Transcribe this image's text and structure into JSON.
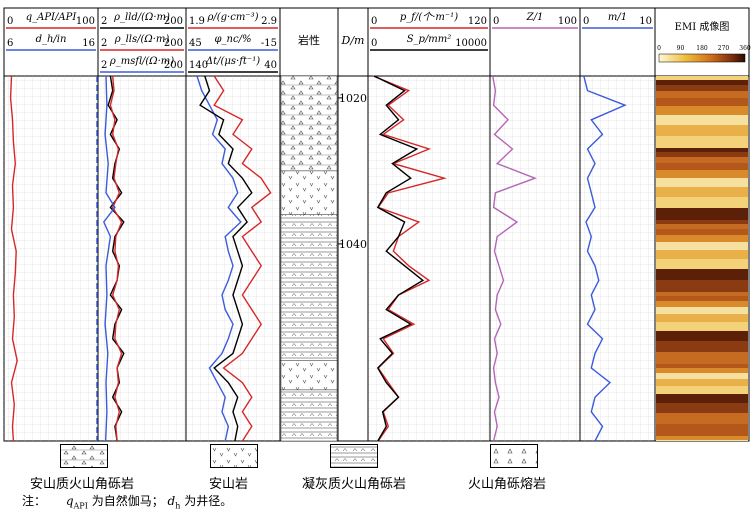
{
  "chart_data": {
    "type": "line",
    "depth_axis": {
      "label": "D/m",
      "ticks": [
        1020,
        1040
      ],
      "range": [
        1017,
        1067
      ]
    },
    "tracks": [
      {
        "id": "gr",
        "headers": [
          {
            "label": "q_API/API",
            "left": "0",
            "right": "100",
            "color": "#d62728"
          },
          {
            "label": "d_h/in",
            "left": "6",
            "right": "16",
            "color": "#3b5bdb"
          }
        ],
        "series": [
          {
            "color": "#d62728",
            "depths": [
              1017,
              1020,
              1023,
              1026,
              1029,
              1032,
              1035,
              1038,
              1041,
              1044,
              1047,
              1050,
              1053,
              1056,
              1059,
              1062,
              1065,
              1067
            ],
            "values": [
              8,
              7,
              9,
              10,
              12,
              9,
              10,
              8,
              13,
              12,
              10,
              11,
              9,
              14,
              8,
              11,
              9,
              10
            ]
          },
          {
            "color": "#3b5bdb",
            "depths": [
              1017,
              1020,
              1023,
              1026,
              1029,
              1032,
              1035,
              1038,
              1041,
              1044,
              1047,
              1050,
              1053,
              1056,
              1059,
              1061,
              1063,
              1065,
              1067
            ],
            "values": [
              30,
              31,
              30,
              32,
              31,
              30,
              33,
              30,
              34,
              31,
              30,
              32,
              31,
              30,
              29,
              50,
              29,
              30,
              31
            ]
          }
        ]
      },
      {
        "id": "res",
        "headers": [
          {
            "label": "ρ_lld/(Ω·m)",
            "left": "2",
            "right": "200",
            "color": "#000000"
          },
          {
            "label": "ρ_lls/(Ω·m)",
            "left": "2",
            "right": "200",
            "color": "#d62728"
          },
          {
            "label": "ρ_msfl/(Ω·m)",
            "left": "2",
            "right": "200",
            "color": "#3b5bdb"
          }
        ],
        "series": [
          {
            "color": "#000000",
            "depths": [
              1017,
              1019,
              1021,
              1023,
              1025,
              1027,
              1029,
              1031,
              1033,
              1035,
              1037,
              1039,
              1041,
              1043,
              1045,
              1047,
              1049,
              1051,
              1053,
              1055,
              1057,
              1059,
              1061,
              1063,
              1065,
              1067
            ],
            "values": [
              30,
              35,
              25,
              45,
              30,
              50,
              40,
              35,
              55,
              30,
              60,
              40,
              35,
              50,
              45,
              30,
              55,
              40,
              35,
              60,
              45,
              50,
              35,
              55,
              40,
              45
            ]
          },
          {
            "color": "#d62728",
            "depths": [
              1017,
              1019,
              1021,
              1023,
              1025,
              1027,
              1029,
              1031,
              1033,
              1035,
              1037,
              1039,
              1041,
              1043,
              1045,
              1047,
              1049,
              1051,
              1053,
              1055,
              1057,
              1059,
              1061,
              1063,
              1065,
              1067
            ],
            "values": [
              35,
              38,
              30,
              40,
              35,
              48,
              42,
              38,
              50,
              35,
              55,
              42,
              40,
              48,
              45,
              35,
              50,
              42,
              40,
              55,
              45,
              48,
              40,
              50,
              42,
              45
            ]
          },
          {
            "color": "#3b5bdb",
            "depths": [
              1017,
              1021,
              1025,
              1029,
              1033,
              1035,
              1037,
              1039,
              1043,
              1047,
              1051,
              1055,
              1059,
              1063,
              1067
            ],
            "values": [
              20,
              22,
              18,
              25,
              20,
              40,
              15,
              30,
              20,
              22,
              18,
              24,
              20,
              22,
              19
            ]
          }
        ]
      },
      {
        "id": "por",
        "headers": [
          {
            "label": "ρ/(g·cm⁻³)",
            "left": "1.9",
            "right": "2.9",
            "color": "#d62728"
          },
          {
            "label": "φ_nc/%",
            "left": "45",
            "right": "-15",
            "color": "#3b5bdb"
          },
          {
            "label": "Δt/(μs·ft⁻¹)",
            "left": "140",
            "right": "40",
            "color": "#000000"
          }
        ],
        "series": [
          {
            "color": "#d62728",
            "depths": [
              1017,
              1019,
              1021,
              1023,
              1025,
              1027,
              1029,
              1031,
              1033,
              1035,
              1037,
              1039,
              1041,
              1043,
              1045,
              1047,
              1049,
              1051,
              1053,
              1055,
              1057,
              1059,
              1061,
              1063,
              1065,
              1067
            ],
            "values": [
              2.2,
              2.3,
              2.2,
              2.5,
              2.4,
              2.6,
              2.5,
              2.7,
              2.8,
              2.6,
              2.7,
              2.5,
              2.6,
              2.7,
              2.6,
              2.5,
              2.6,
              2.7,
              2.6,
              2.5,
              2.3,
              2.5,
              2.6,
              2.5,
              2.6,
              2.5
            ]
          },
          {
            "color": "#3b5bdb",
            "depths": [
              1017,
              1019,
              1021,
              1023,
              1025,
              1027,
              1029,
              1031,
              1033,
              1035,
              1037,
              1039,
              1041,
              1043,
              1045,
              1047,
              1049,
              1051,
              1053,
              1055,
              1057,
              1059,
              1061,
              1063,
              1065,
              1067
            ],
            "values": [
              38,
              35,
              30,
              25,
              28,
              20,
              22,
              15,
              12,
              18,
              10,
              20,
              18,
              15,
              18,
              22,
              20,
              15,
              18,
              22,
              30,
              25,
              20,
              22,
              18,
              20
            ]
          },
          {
            "color": "#000000",
            "depths": [
              1017,
              1019,
              1021,
              1023,
              1025,
              1027,
              1029,
              1031,
              1033,
              1035,
              1037,
              1039,
              1041,
              1043,
              1045,
              1047,
              1049,
              1051,
              1053,
              1055,
              1057,
              1059,
              1061,
              1063,
              1065,
              1067
            ],
            "values": [
              120,
              115,
              125,
              100,
              105,
              90,
              95,
              80,
              70,
              85,
              75,
              90,
              85,
              80,
              85,
              90,
              85,
              80,
              85,
              90,
              110,
              95,
              85,
              90,
              85,
              88
            ]
          }
        ]
      },
      {
        "id": "frac",
        "headers": [
          {
            "label": "p_f/(个·m⁻¹)",
            "left": "0",
            "right": "120",
            "color": "#d62728"
          },
          {
            "label": "S_p/mm²",
            "left": "0",
            "right": "10000",
            "color": "#000000"
          }
        ],
        "series": [
          {
            "color": "#d62728",
            "depths": [
              1017,
              1019,
              1021,
              1023,
              1025,
              1027,
              1029,
              1031,
              1033,
              1035,
              1037,
              1039,
              1041,
              1043,
              1045,
              1047,
              1049,
              1051,
              1053,
              1055,
              1057,
              1059,
              1061,
              1063,
              1065,
              1067
            ],
            "values": [
              5,
              40,
              20,
              35,
              15,
              60,
              25,
              75,
              20,
              10,
              50,
              30,
              25,
              40,
              60,
              30,
              20,
              45,
              15,
              25,
              10,
              20,
              30,
              15,
              20,
              10
            ]
          },
          {
            "color": "#000000",
            "depths": [
              1017,
              1019,
              1021,
              1023,
              1025,
              1027,
              1029,
              1031,
              1033,
              1035,
              1037,
              1039,
              1041,
              1043,
              1045,
              1047,
              1049,
              1051,
              1053,
              1055,
              1057,
              1059,
              1061,
              1063,
              1065,
              1067
            ],
            "values": [
              500,
              3000,
              1500,
              2500,
              1000,
              4000,
              2000,
              3500,
              1500,
              800,
              3000,
              2500,
              1500,
              3000,
              4500,
              2500,
              1500,
              3500,
              1000,
              2000,
              800,
              1500,
              2500,
              1200,
              1500,
              800
            ]
          }
        ]
      },
      {
        "id": "z",
        "headers": [
          {
            "label": "Z/1",
            "left": "0",
            "right": "100",
            "color": "#b565b5"
          }
        ],
        "series": [
          {
            "color": "#b565b5",
            "depths": [
              1017,
              1019,
              1021,
              1023,
              1025,
              1027,
              1029,
              1031,
              1033,
              1035,
              1037,
              1039,
              1041,
              1043,
              1045,
              1047,
              1049,
              1051,
              1053,
              1055,
              1057,
              1059,
              1061,
              1063,
              1065,
              1067
            ],
            "values": [
              3,
              6,
              4,
              20,
              5,
              25,
              8,
              50,
              6,
              4,
              30,
              8,
              5,
              10,
              15,
              8,
              6,
              12,
              5,
              8,
              4,
              6,
              10,
              5,
              8,
              4
            ]
          }
        ]
      },
      {
        "id": "m",
        "headers": [
          {
            "label": "m/1",
            "left": "0",
            "right": "10",
            "color": "#3b5bdb"
          }
        ],
        "series": [
          {
            "color": "#3b5bdb",
            "depths": [
              1017,
              1019,
              1021,
              1023,
              1025,
              1027,
              1029,
              1031,
              1033,
              1035,
              1037,
              1039,
              1041,
              1043,
              1045,
              1047,
              1049,
              1051,
              1053,
              1055,
              1057,
              1059,
              1061,
              1063,
              1065,
              1067
            ],
            "values": [
              0.5,
              1,
              6,
              1.5,
              3,
              1,
              2,
              1,
              1.5,
              2,
              0.8,
              1.5,
              1,
              2,
              2.5,
              1.5,
              2,
              1,
              3,
              2,
              1.5,
              4,
              2,
              1.5,
              3,
              2
            ]
          }
        ]
      }
    ],
    "lithology": {
      "label": "岩性",
      "intervals": [
        {
          "top": 1017,
          "bottom": 1030,
          "pattern": "breccia"
        },
        {
          "top": 1030,
          "bottom": 1036,
          "pattern": "andesite"
        },
        {
          "top": 1036,
          "bottom": 1056,
          "pattern": "tuff"
        },
        {
          "top": 1056,
          "bottom": 1060,
          "pattern": "andesite"
        },
        {
          "top": 1060,
          "bottom": 1067,
          "pattern": "tuff"
        }
      ]
    },
    "image_track": {
      "label": "EMI 成像图",
      "scale_ticks": [
        "0",
        "90",
        "180",
        "270",
        "360"
      ]
    }
  },
  "legend": [
    {
      "label": "安山质火山角砾岩",
      "pattern": "breccia"
    },
    {
      "label": "安山岩",
      "pattern": "andesite"
    },
    {
      "label": "凝灰质火山角砾岩",
      "pattern": "tuff"
    },
    {
      "label": "火山角砾熔岩",
      "pattern": "lava"
    }
  ],
  "note": {
    "prefix": "注：",
    "text1": "为自然伽马；",
    "text2": "为井径。"
  }
}
